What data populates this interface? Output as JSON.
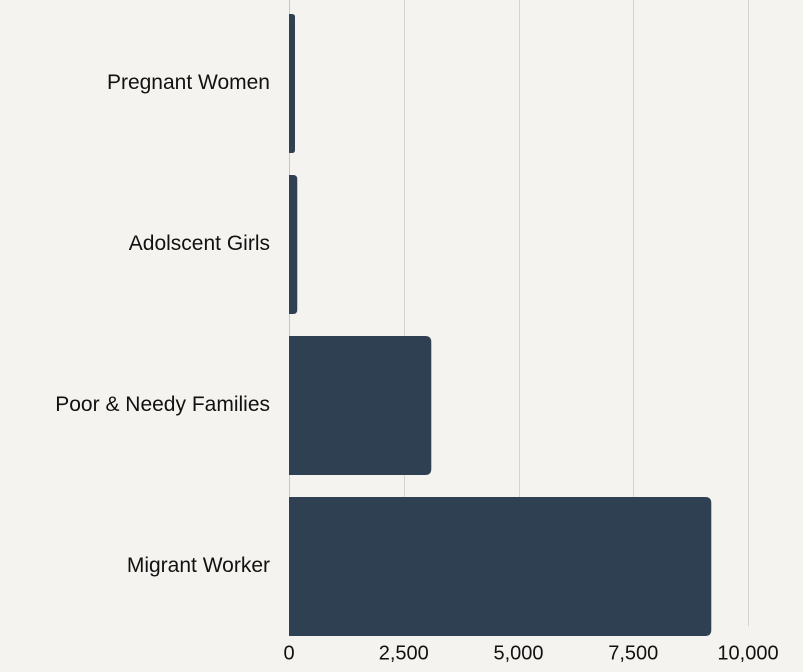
{
  "chart_data": {
    "type": "bar",
    "orientation": "horizontal",
    "categories": [
      "Pregnant Women",
      "Adolscent Girls",
      "Poor & Needy Families",
      "Migrant Worker"
    ],
    "values": [
      120,
      180,
      3100,
      9200
    ],
    "xlim": [
      0,
      10000
    ],
    "xticks": [
      0,
      2500,
      5000,
      7500,
      10000
    ],
    "xtick_labels": [
      "0",
      "2,500",
      "5,000",
      "7,500",
      "10,000"
    ],
    "grid": true,
    "bar_color": "#2e4052",
    "background_color": "#f5f3ef",
    "title": "",
    "xlabel": "",
    "ylabel": ""
  }
}
